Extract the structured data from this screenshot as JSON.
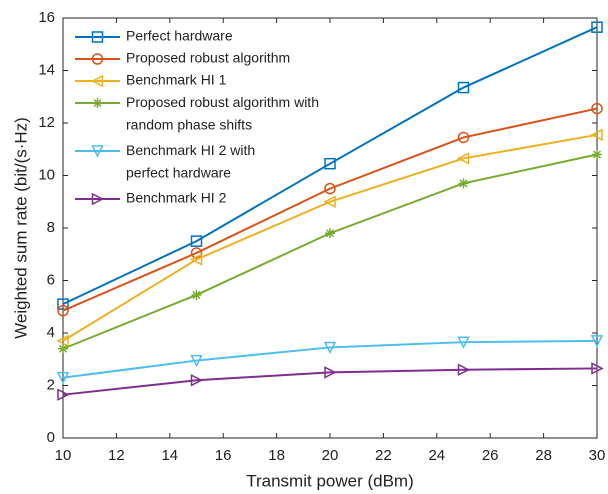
{
  "chart_data": {
    "type": "line",
    "x_label": "Transmit power (dBm)",
    "y_label": "Weighted sum rate (bit/(s·Hz)",
    "x": [
      10,
      15,
      20,
      25,
      30
    ],
    "xlim": [
      10,
      30
    ],
    "xticks": [
      10,
      12,
      14,
      16,
      18,
      20,
      22,
      24,
      26,
      28,
      30
    ],
    "ylim": [
      0,
      16
    ],
    "yticks": [
      0,
      2,
      4,
      6,
      8,
      10,
      12,
      14,
      16
    ],
    "legend": "upper left",
    "series": [
      {
        "name": "Perfect hardware",
        "color": "#0072bd",
        "marker": "square",
        "values": [
          5.1,
          7.5,
          10.45,
          13.35,
          15.65
        ]
      },
      {
        "name": "Proposed robust algorithm",
        "color": "#d95319",
        "marker": "circle",
        "values": [
          4.85,
          7.05,
          9.5,
          11.45,
          12.55
        ]
      },
      {
        "name": "Benchmark HI 1",
        "color": "#edb120",
        "marker": "triangle-left",
        "values": [
          3.7,
          6.8,
          9.0,
          10.65,
          11.55
        ]
      },
      {
        "name": "Proposed robust algorithm with\nrandom phase shifts",
        "color": "#77ac30",
        "marker": "star",
        "values": [
          3.4,
          5.45,
          7.8,
          9.7,
          10.8
        ]
      },
      {
        "name": "Benchmark HI 2 with\nperfect hardware",
        "color": "#4dbeee",
        "marker": "triangle-down",
        "values": [
          2.3,
          2.95,
          3.45,
          3.65,
          3.7
        ]
      },
      {
        "name": "Benchmark HI 2",
        "color": "#7e2f8e",
        "marker": "triangle-right",
        "values": [
          1.65,
          2.2,
          2.5,
          2.6,
          2.65
        ]
      }
    ]
  }
}
